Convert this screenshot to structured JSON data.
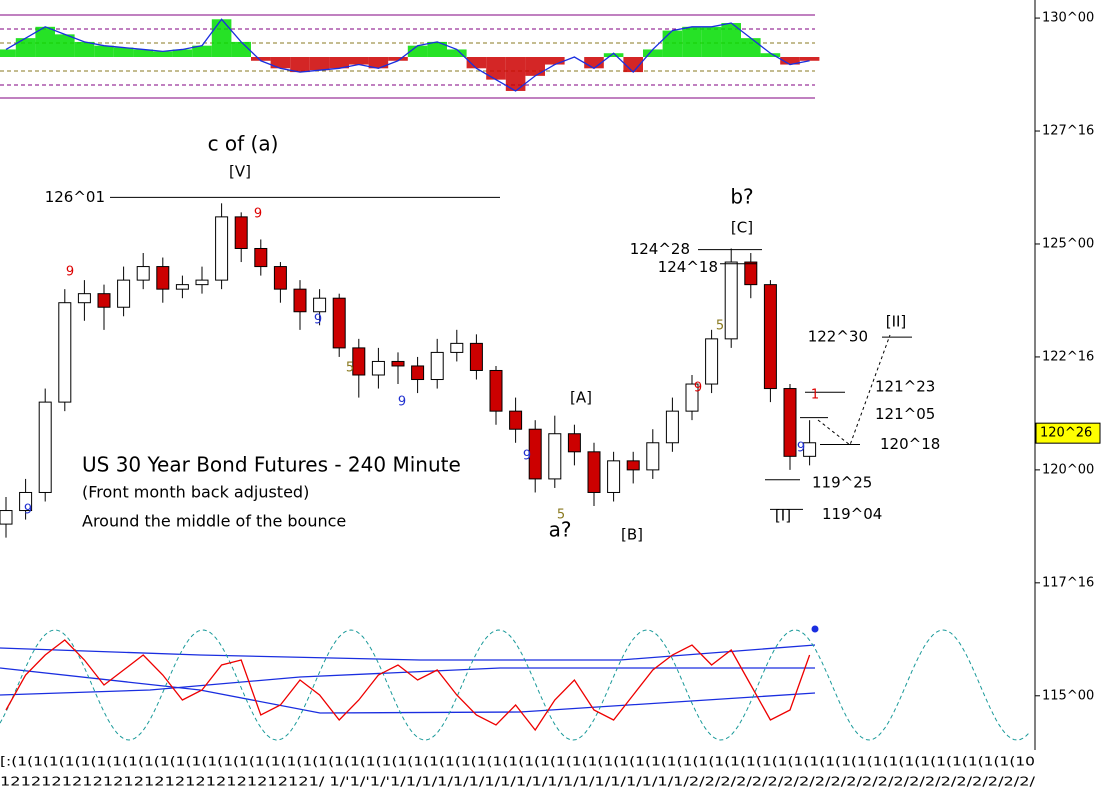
{
  "chart_data": {
    "type": "candlestick",
    "title": "US 30 Year Bond Futures - 240 Minute",
    "subtitle": "(Front month back adjusted)",
    "note": "Around the middle of the bounce",
    "up_color": "#ffffff",
    "down_color": "#cc0000",
    "open": [
      118.8,
      119.1,
      119.5,
      121.5,
      123.7,
      123.9,
      123.6,
      124.2,
      124.5,
      124.0,
      124.1,
      124.2,
      125.6,
      124.9,
      124.5,
      124.0,
      123.5,
      123.8,
      122.7,
      122.1,
      122.4,
      122.3,
      122.0,
      122.6,
      122.8,
      122.2,
      121.3,
      120.9,
      119.8,
      120.8,
      120.4,
      119.5,
      120.2,
      120.0,
      120.6,
      121.3,
      121.9,
      122.9,
      124.6,
      124.1,
      121.8,
      120.3
    ],
    "high": [
      119.4,
      119.8,
      121.8,
      124.0,
      124.2,
      124.1,
      124.5,
      124.8,
      124.7,
      124.3,
      124.5,
      125.9,
      125.7,
      125.1,
      124.6,
      124.2,
      124.0,
      123.9,
      122.9,
      122.7,
      122.6,
      122.5,
      122.9,
      123.1,
      123.0,
      122.3,
      121.6,
      121.1,
      121.2,
      121.0,
      120.6,
      120.4,
      120.4,
      120.9,
      121.6,
      122.1,
      123.1,
      124.9,
      124.8,
      124.2,
      121.9,
      121.1
    ],
    "low": [
      118.5,
      118.9,
      119.3,
      121.3,
      123.3,
      123.1,
      123.4,
      124.0,
      123.7,
      123.8,
      123.9,
      124.0,
      124.6,
      124.3,
      123.7,
      123.1,
      123.2,
      122.5,
      121.6,
      121.8,
      121.9,
      121.7,
      121.8,
      122.4,
      122.0,
      121.0,
      120.6,
      119.5,
      119.6,
      120.1,
      119.2,
      119.3,
      119.7,
      119.8,
      120.4,
      121.1,
      121.7,
      122.7,
      123.8,
      121.5,
      120.0,
      120.1
    ],
    "close": [
      119.1,
      119.5,
      121.5,
      123.7,
      123.9,
      123.6,
      124.2,
      124.5,
      124.0,
      124.1,
      124.2,
      125.6,
      124.9,
      124.5,
      124.0,
      123.5,
      123.8,
      122.7,
      122.1,
      122.4,
      122.3,
      122.0,
      122.6,
      122.8,
      122.2,
      121.3,
      120.9,
      119.8,
      120.8,
      120.4,
      119.5,
      120.2,
      120.0,
      120.6,
      121.3,
      121.9,
      122.9,
      124.6,
      124.1,
      121.8,
      120.3,
      120.6
    ],
    "ylim": [
      113.8,
      130.4
    ],
    "yticks": [
      {
        "value": 130,
        "label": "130^00"
      },
      {
        "value": 127.5,
        "label": "127^16"
      },
      {
        "value": 125,
        "label": "125^00"
      },
      {
        "value": 122.5,
        "label": "122^16"
      },
      {
        "value": 120,
        "label": "120^00"
      },
      {
        "value": 117.5,
        "label": "117^16"
      },
      {
        "value": 115,
        "label": "115^00"
      }
    ],
    "last_price": {
      "value": 120.8125,
      "label": "120^26",
      "color": "#ffff00"
    },
    "levels": [
      {
        "value": 126.03125,
        "label": "126^01"
      },
      {
        "value": 124.875,
        "label": "124^28"
      },
      {
        "value": 124.5625,
        "label": "124^18"
      },
      {
        "value": 122.9375,
        "label": "122^30"
      },
      {
        "value": 121.71875,
        "label": "121^23"
      },
      {
        "value": 121.15625,
        "label": "121^05"
      },
      {
        "value": 120.5625,
        "label": "120^18"
      },
      {
        "value": 119.78125,
        "label": "119^25"
      },
      {
        "value": 119.125,
        "label": "119^04"
      }
    ],
    "labels": [
      "c of (a)",
      "[V]",
      "b?",
      "[C]",
      "[A]",
      "a?",
      "[B]",
      "[II]",
      "[I]"
    ],
    "counts": [
      {
        "text": "9",
        "color": "#dd0000"
      },
      {
        "text": "9",
        "color": "#dd0000"
      },
      {
        "text": "9",
        "color": "#dd0000"
      },
      {
        "text": "9",
        "color": "#2030d0"
      },
      {
        "text": "9",
        "color": "#2030d0"
      },
      {
        "text": "9",
        "color": "#2030d0"
      },
      {
        "text": "9",
        "color": "#2030d0"
      },
      {
        "text": "9",
        "color": "#2030d0"
      },
      {
        "text": "5",
        "color": "#8a7a20"
      },
      {
        "text": "5",
        "color": "#8a7a20"
      },
      {
        "text": "5",
        "color": "#8a7a20"
      },
      {
        "text": "1",
        "color": "#dd0000"
      }
    ],
    "oscillator": {
      "values": [
        0.2,
        0.5,
        0.8,
        0.6,
        0.4,
        0.3,
        0.25,
        0.2,
        0.15,
        0.2,
        0.3,
        1.0,
        0.4,
        -0.1,
        -0.3,
        -0.4,
        -0.35,
        -0.3,
        -0.2,
        -0.3,
        -0.1,
        0.3,
        0.4,
        0.2,
        -0.3,
        -0.6,
        -0.9,
        -0.5,
        -0.2,
        0.0,
        -0.3,
        0.1,
        -0.4,
        0.2,
        0.7,
        0.8,
        0.8,
        0.9,
        0.5,
        0.1,
        -0.2,
        -0.1
      ],
      "ylim": [
        -1.1,
        1.1
      ],
      "up_color": "#00dd00",
      "down_color": "#cc0000"
    },
    "cycle": {
      "values": [
        -0.5,
        0.2,
        0.6,
        0.9,
        0.5,
        0.0,
        0.3,
        0.6,
        0.2,
        -0.3,
        -0.1,
        0.4,
        0.5,
        -0.6,
        -0.4,
        0.1,
        -0.2,
        -0.7,
        -0.3,
        0.2,
        0.4,
        0.1,
        0.3,
        -0.2,
        -0.6,
        -0.8,
        -0.4,
        -0.9,
        -0.3,
        0.1,
        -0.5,
        -0.7,
        -0.2,
        0.3,
        0.6,
        0.8,
        0.4,
        0.7,
        0.0,
        -0.7,
        -0.5,
        0.6
      ],
      "ylim": [
        -1.1,
        1.1
      ],
      "color": "#ee0000"
    },
    "x_labels": [
      "[:(1(1(1(1(1(1(1(1(1(1(1(1(1(1(1(1(1(1(1(1(1(1(1(1(1(1(1(1(1(1(1(1(1(1(1(1(1(1(1(1(1(1(1(1(1(1(1(1(1(1(1(1(1(1(1(1(1(1(1(1(1(1(1(10",
      "1212121212121212121212121212121/ 1/'1/'1/'1/1/1/1/1/1/1/1/1/1/1/1/1/1/1/1/1/1/1/2/2/2/2/2/2/2/2/2/2/2/2/2/2/2/2/2/2/2/2/2/2/"
    ]
  }
}
